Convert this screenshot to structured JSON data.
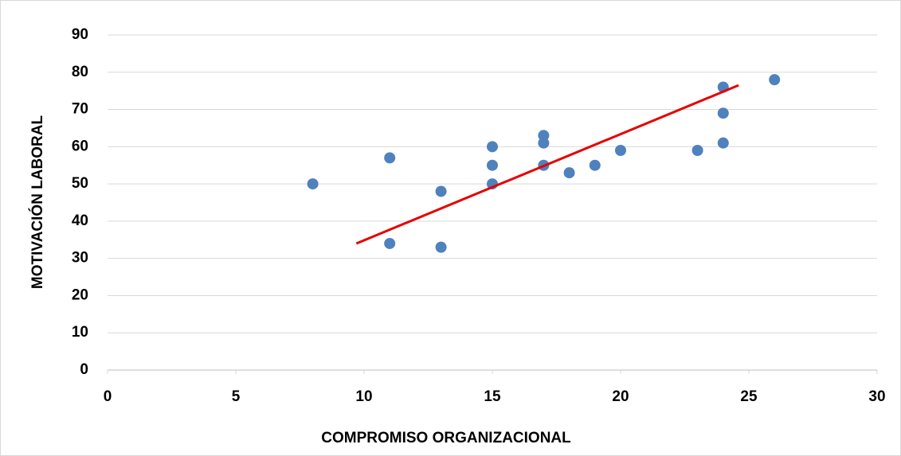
{
  "chart_data": {
    "type": "scatter",
    "x_label": "COMPROMISO  ORGANIZACIONAL",
    "y_label": "MOTIVACIÓN  LABORAL",
    "x": [
      8,
      11,
      11,
      13,
      13,
      15,
      15,
      15,
      17,
      17,
      17,
      18,
      19,
      20,
      23,
      24,
      24,
      24,
      26
    ],
    "y": [
      50,
      57,
      34,
      48,
      33,
      60,
      55,
      50,
      63,
      61,
      55,
      53,
      55,
      59,
      59,
      76,
      69,
      61,
      78
    ],
    "color": "#4f81bd",
    "trendline": {
      "x": [
        9.7,
        24.6
      ],
      "y": [
        34,
        76.5
      ],
      "color": "#e60000"
    },
    "xlim": [
      0,
      30
    ],
    "xticks": [
      0,
      5,
      10,
      15,
      20,
      25,
      30
    ],
    "ylim": [
      0,
      90
    ],
    "yticks": [
      0,
      10,
      20,
      30,
      40,
      50,
      60,
      70,
      80,
      90
    ],
    "grid": true
  }
}
